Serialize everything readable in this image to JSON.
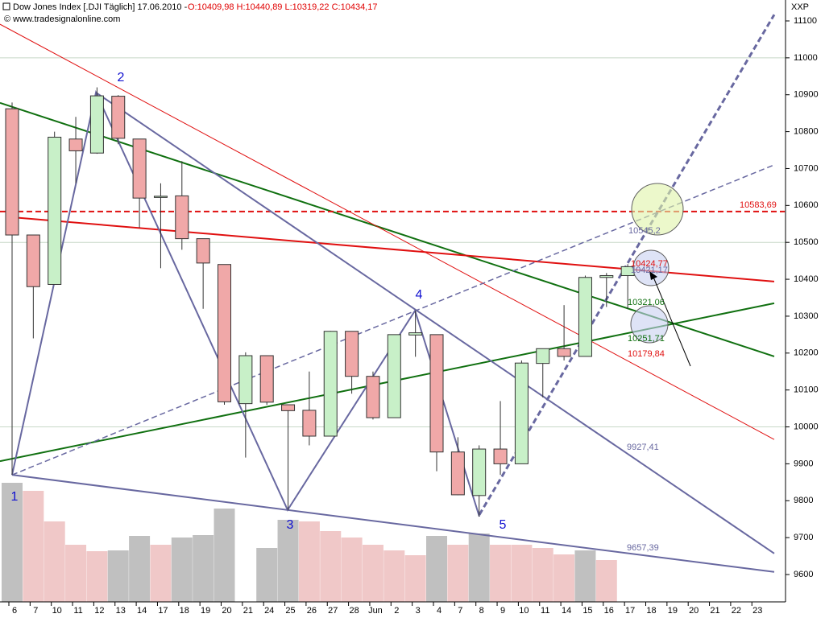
{
  "header": {
    "title": "Dow Jones Index [.DJI  Täglich] 17.06.2010 -",
    "quote": "O:10409,98 H:10440,89 L:10319,22 C:10434,17",
    "source": "© www.tradesignalonline.com",
    "corner": "XXP"
  },
  "chart_data": {
    "type": "candlestick",
    "categories": [
      "6",
      "7",
      "10",
      "11",
      "12",
      "13",
      "14",
      "17",
      "18",
      "19",
      "20",
      "21",
      "24",
      "25",
      "26",
      "27",
      "28",
      "Jun",
      "2",
      "3",
      "4",
      "7",
      "8",
      "9",
      "10",
      "11",
      "14",
      "15",
      "16",
      "17",
      "18",
      "19",
      "20",
      "21",
      "22",
      "23"
    ],
    "open": [
      10862,
      10520,
      10386,
      10780,
      10742,
      10896,
      10780,
      10625,
      10626,
      10510,
      10440,
      10063,
      10193,
      10060,
      10045,
      9975,
      10259,
      10137,
      10025,
      10249,
      10250,
      9932,
      9814,
      9940,
      9900,
      10172,
      10212,
      10191,
      10405,
      10409.98,
      null,
      null,
      null,
      null,
      null,
      null
    ],
    "high": [
      10879,
      10520,
      10800,
      10840,
      10920,
      10899,
      10780,
      10660,
      10720,
      10510,
      10440,
      10202,
      10193,
      10060,
      10150,
      10260,
      10259,
      10150,
      10250,
      10315,
      10250,
      9972,
      9950,
      10070,
      10180,
      10210,
      10330,
      10410,
      10417,
      10440.89,
      null,
      null,
      null,
      null,
      null,
      null
    ],
    "low": [
      9870,
      10240,
      10386,
      10660,
      10740,
      10766,
      10540,
      10430,
      10480,
      10320,
      10060,
      9917,
      10060,
      9775,
      9950,
      9975,
      10090,
      10020,
      10025,
      10190,
      9880,
      9815,
      9757,
      9870,
      9900,
      10080,
      10180,
      10191,
      10325,
      10319.22,
      null,
      null,
      null,
      null,
      null,
      null
    ],
    "close": [
      10520,
      10380,
      10785,
      10748,
      10897,
      10782,
      10620,
      10625,
      10510,
      10444,
      10068,
      10193,
      10067,
      10044,
      9975,
      10259,
      10137,
      10025,
      10250,
      10255,
      9932,
      9816,
      9940,
      9900,
      10173,
      10212,
      10191,
      10405,
      10410,
      10434.17,
      null,
      null,
      null,
      null,
      null,
      null
    ],
    "up_color": "#c8f0c8",
    "down_color": "#f0a8a8",
    "volume": [
      148,
      138,
      100,
      71,
      63,
      64,
      82,
      71,
      80,
      83,
      116,
      null,
      67,
      102,
      100,
      88,
      80,
      71,
      64,
      58,
      82,
      71,
      85,
      71,
      71,
      67,
      59,
      64,
      52,
      null,
      null,
      null,
      null,
      null,
      null,
      null
    ],
    "volume_colors": [
      "#c0c0c0",
      "#f0c8c8",
      "#f0c8c8",
      "#f0c8c8",
      "#f0c8c8",
      "#c0c0c0",
      "#c0c0c0",
      "#f0c8c8",
      "#c0c0c0",
      "#c0c0c0",
      "#c0c0c0",
      null,
      "#c0c0c0",
      "#c0c0c0",
      "#f0c8c8",
      "#f0c8c8",
      "#f0c8c8",
      "#f0c8c8",
      "#f0c8c8",
      "#f0c8c8",
      "#c0c0c0",
      "#f0c8c8",
      "#c0c0c0",
      "#f0c8c8",
      "#f0c8c8",
      "#f0c8c8",
      "#f0c8c8",
      "#c0c0c0",
      "#f0c8c8",
      null,
      null,
      null,
      null,
      null,
      null,
      null
    ],
    "ylim": [
      9550,
      11150
    ],
    "yticks": [
      9600,
      9700,
      9800,
      9900,
      10000,
      10100,
      10200,
      10300,
      10400,
      10500,
      10600,
      10700,
      10800,
      10900,
      11000,
      11100
    ],
    "ygrid": [
      10000,
      10500,
      11000
    ],
    "lines": [
      {
        "x": [
          -0.57,
          35.9
        ],
        "y": [
          10878,
          10191
        ],
        "color": "#107010",
        "width": 2,
        "dash": false
      },
      {
        "x": [
          -0.57,
          35.9
        ],
        "y": [
          9907,
          10335
        ],
        "color": "#107010",
        "width": 2,
        "dash": false
      },
      {
        "x": [
          0,
          35.9
        ],
        "y": [
          10568,
          10394
        ],
        "color": "#e01010",
        "width": 2,
        "dash": false
      },
      {
        "x": [
          -0.57,
          35.9
        ],
        "y": [
          11091,
          9966
        ],
        "color": "#e01010",
        "width": 1,
        "dash": false
      },
      {
        "x": [
          -0.57,
          36.4
        ],
        "y": [
          10583.69,
          10583.69
        ],
        "color": "#e01010",
        "width": 2,
        "dash": true
      },
      {
        "x": [
          0,
          35.9
        ],
        "y": [
          9870,
          9607
        ],
        "color": "#6868a0",
        "width": 2,
        "dash": false
      },
      {
        "x": [
          3.95,
          35.9
        ],
        "y": [
          10906,
          9657
        ],
        "color": "#6868a0",
        "width": 2,
        "dash": false
      },
      {
        "x": [
          0,
          3.95,
          12.98,
          18.98,
          22.01
        ],
        "y": [
          9870,
          10906,
          9775,
          10315,
          9757
        ],
        "color": "#6868a0",
        "width": 2,
        "dash": false
      },
      {
        "x": [
          0,
          35.9
        ],
        "y": [
          9870,
          10710
        ],
        "color": "#6868a0",
        "width": 1.5,
        "dash": true
      },
      {
        "x": [
          22.01,
          35.9
        ],
        "y": [
          9762,
          11117
        ],
        "color": "#6868a0",
        "width": 3,
        "dash": true
      }
    ],
    "wave_labels": [
      "1",
      "2",
      "3",
      "4",
      "5"
    ],
    "line_labels": [
      {
        "text": "10583,69",
        "color": "#e01010"
      },
      {
        "text": "10545,2",
        "color": "#6868a0"
      },
      {
        "text": "10424,77",
        "color": "#e01010"
      },
      {
        "text": "10421,17",
        "color": "#6868a0"
      },
      {
        "text": "10321,06",
        "color": "#107010"
      },
      {
        "text": "10251,71",
        "color": "#107010"
      },
      {
        "text": "10179,84",
        "color": "#e01010"
      },
      {
        "text": "9927,41",
        "color": "#6868a0"
      },
      {
        "text": "9657,39",
        "color": "#6868a0"
      }
    ]
  }
}
